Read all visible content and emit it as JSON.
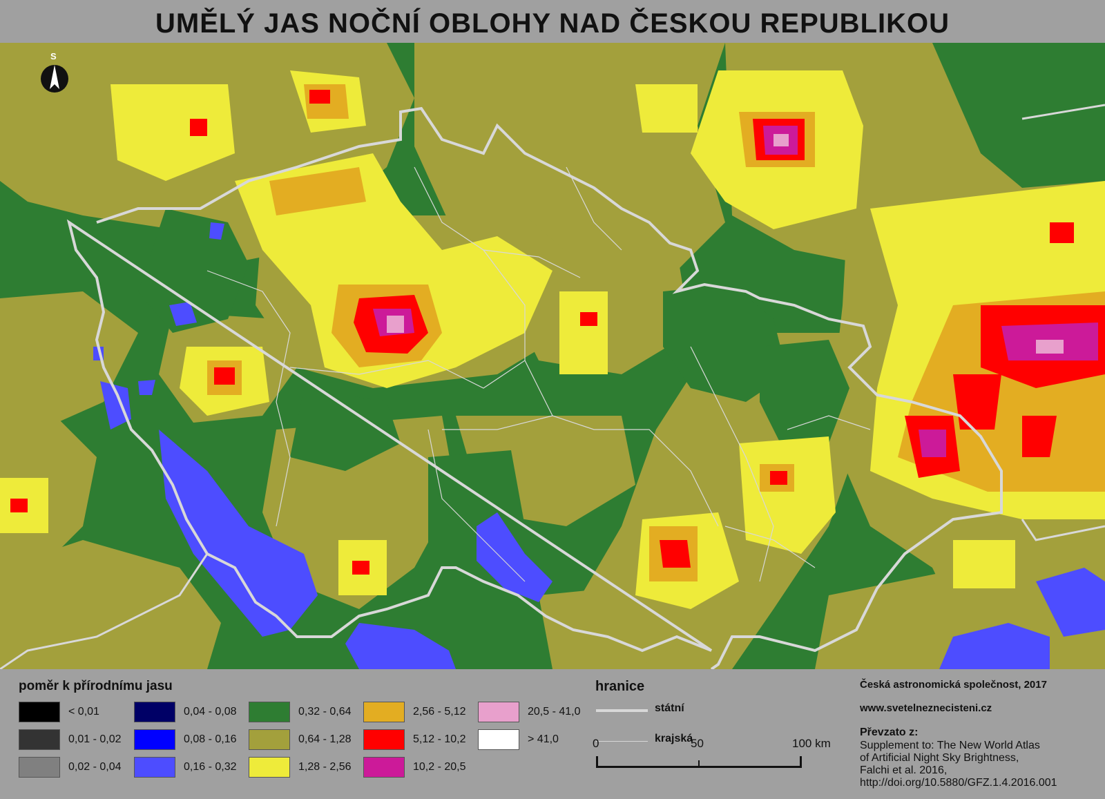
{
  "title": "UMĚLÝ JAS NOČNÍ OBLOHY NAD ČESKOU REPUBLIKOU",
  "north_letter": "S",
  "legend": {
    "title": "poměr k přírodnímu jasu",
    "classes": [
      {
        "label": "< 0,01",
        "color": "#000000"
      },
      {
        "label": "0,01 - 0,02",
        "color": "#333333"
      },
      {
        "label": "0,02 - 0,04",
        "color": "#808080"
      },
      {
        "label": "0,04 - 0,08",
        "color": "#000066"
      },
      {
        "label": "0,08 - 0,16",
        "color": "#0000ff"
      },
      {
        "label": "0,16 - 0,32",
        "color": "#4d4dff"
      },
      {
        "label": "0,32 - 0,64",
        "color": "#2e7d32"
      },
      {
        "label": "0,64 - 1,28",
        "color": "#a3a03c"
      },
      {
        "label": "1,28 - 2,56",
        "color": "#eeeb3a"
      },
      {
        "label": "2,56 - 5,12",
        "color": "#e3ad22"
      },
      {
        "label": "5,12 - 10,2",
        "color": "#ff0000"
      },
      {
        "label": "10,2 - 20,5",
        "color": "#cc1a99"
      },
      {
        "label": "20,5 - 41,0",
        "color": "#e8a0cc"
      },
      {
        "label": "> 41,0",
        "color": "#ffffff"
      }
    ]
  },
  "borders": {
    "title": "hranice",
    "state": "státní",
    "regional": "krajská"
  },
  "scale": {
    "zero": "0",
    "mid": "50",
    "max": "100 km"
  },
  "credits": {
    "org": "Česká astronomická společnost, 2017",
    "url": "www.svetelneznecisteni.cz",
    "source_title": "Převzato z:",
    "source_lines": [
      "Supplement to: The New World Atlas",
      "of Artificial Night Sky Brightness,",
      "Falchi et al. 2016,",
      "http://doi.org/10.5880/GFZ.1.4.2016.001"
    ]
  }
}
